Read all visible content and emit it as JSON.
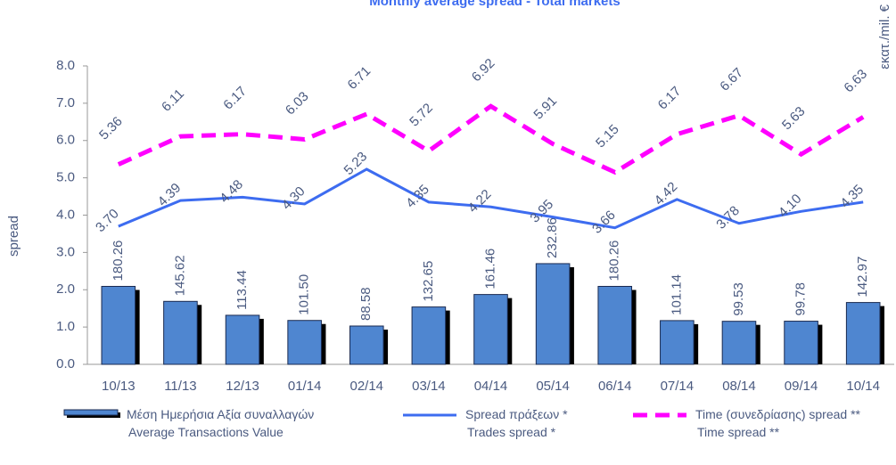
{
  "chart_data": {
    "type": "bar_line",
    "title": "Monthly average spread - Total markets",
    "y_label": "spread",
    "y2_label": "εκατ./mil. €",
    "categories": [
      "10/13",
      "11/13",
      "12/13",
      "01/14",
      "02/14",
      "03/14",
      "04/14",
      "05/14",
      "06/14",
      "07/14",
      "08/14",
      "09/14",
      "10/14"
    ],
    "ylim": [
      0,
      8
    ],
    "yticks": [
      {
        "value": 0,
        "label": "0.0"
      },
      {
        "value": 1,
        "label": "1.0"
      },
      {
        "value": 2,
        "label": "2.0"
      },
      {
        "value": 3,
        "label": "3.0"
      },
      {
        "value": 4,
        "label": "4.0"
      },
      {
        "value": 5,
        "label": "5.0"
      },
      {
        "value": 6,
        "label": "6.0"
      },
      {
        "value": 7,
        "label": "7.0"
      },
      {
        "value": 8,
        "label": "8.0"
      }
    ],
    "y2lim": [
      0,
      690
    ],
    "series": [
      {
        "name": "Μέση Ημερήσια Αξία συναλλαγών\nAverage Transactions Value",
        "kind": "bar",
        "axis": "y2",
        "color": "#4f86d0",
        "values": [
          180.26,
          145.62,
          113.44,
          101.5,
          88.58,
          132.65,
          161.46,
          232.86,
          180.26,
          101.14,
          99.53,
          99.78,
          142.97
        ],
        "value_labels": [
          "180.26",
          "145.62",
          "113.44",
          "101.50",
          "88.58",
          "132.65",
          "161.46",
          "232.86",
          "180.26",
          "101.14",
          "99.53",
          "99.78",
          "142.97"
        ]
      },
      {
        "name": "Spread πράξεων *\nTrades spread *",
        "kind": "line",
        "color": "#3d6cf0",
        "values": [
          3.7,
          4.39,
          4.48,
          4.3,
          5.23,
          4.35,
          4.22,
          3.95,
          3.66,
          4.42,
          3.78,
          4.1,
          4.35
        ],
        "value_labels": [
          "3.70",
          "4.39",
          "4.48",
          "4.30",
          "5.23",
          "4.35",
          "4.22",
          "3.95",
          "3.66",
          "4.42",
          "3.78",
          "4.10",
          "4.35"
        ]
      },
      {
        "name": "Time  (συνεδρίασης) spread **\nTime spread **",
        "kind": "dashed",
        "color": "#ff00ff",
        "values": [
          5.36,
          6.11,
          6.17,
          6.03,
          6.71,
          5.72,
          6.92,
          5.91,
          5.15,
          6.17,
          6.67,
          5.63,
          6.63
        ]
      }
    ]
  }
}
